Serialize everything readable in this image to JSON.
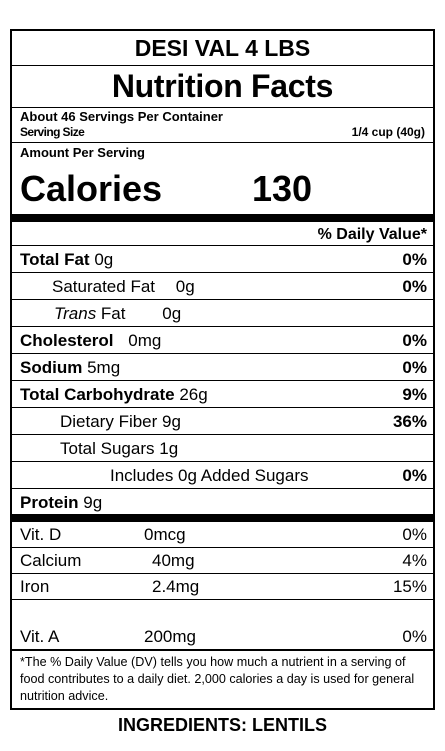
{
  "product_name": "DESI VAL 4 LBS",
  "title": "Nutrition Facts",
  "servings_per_container": "About 46 Servings Per Container",
  "serving_size_label": "Serving Size",
  "serving_size_value": "1/4 cup (40g)",
  "amount_per_serving": "Amount Per Serving",
  "calories_label": "Calories",
  "calories_value": "130",
  "daily_value_header": "% Daily Value*",
  "nutrients": {
    "total_fat": {
      "label": "Total Fat",
      "amount": "0g",
      "dv": "0%"
    },
    "saturated_fat": {
      "label": "Saturated Fat",
      "amount": "0g",
      "dv": "0%"
    },
    "trans_fat": {
      "label_italic": "Trans",
      "label": " Fat",
      "amount": "0g"
    },
    "cholesterol": {
      "label": "Cholesterol",
      "amount": "0mg",
      "dv": "0%"
    },
    "sodium": {
      "label": "Sodium",
      "amount": "5mg",
      "dv": "0%"
    },
    "total_carbohydrate": {
      "label": "Total Carbohydrate",
      "amount": "26g",
      "dv": "9%"
    },
    "dietary_fiber": {
      "label": "Dietary Fiber",
      "amount": "9g",
      "dv": "36%"
    },
    "total_sugars": {
      "label": "Total Sugars",
      "amount": "1g"
    },
    "added_sugars": {
      "label": "Includes 0g Added Sugars",
      "dv": "0%"
    },
    "protein": {
      "label": "Protein",
      "amount": "9g"
    }
  },
  "vitamins": [
    {
      "name": "Vit.  D",
      "amount": "0mcg",
      "dv": "0%"
    },
    {
      "name": "Calcium",
      "amount": "40mg",
      "dv": "4%"
    },
    {
      "name": "Iron",
      "amount": "2.4mg",
      "dv": "15%"
    },
    {
      "name": "Vit. A",
      "amount": "200mg",
      "dv": "0%"
    }
  ],
  "footnote": "*The % Daily Value (DV) tells you how much a nutrient in a serving of food contributes to a daily diet. 2,000 calories a day is used for general nutrition advice.",
  "ingredients": "INGREDIENTS: LENTILS"
}
